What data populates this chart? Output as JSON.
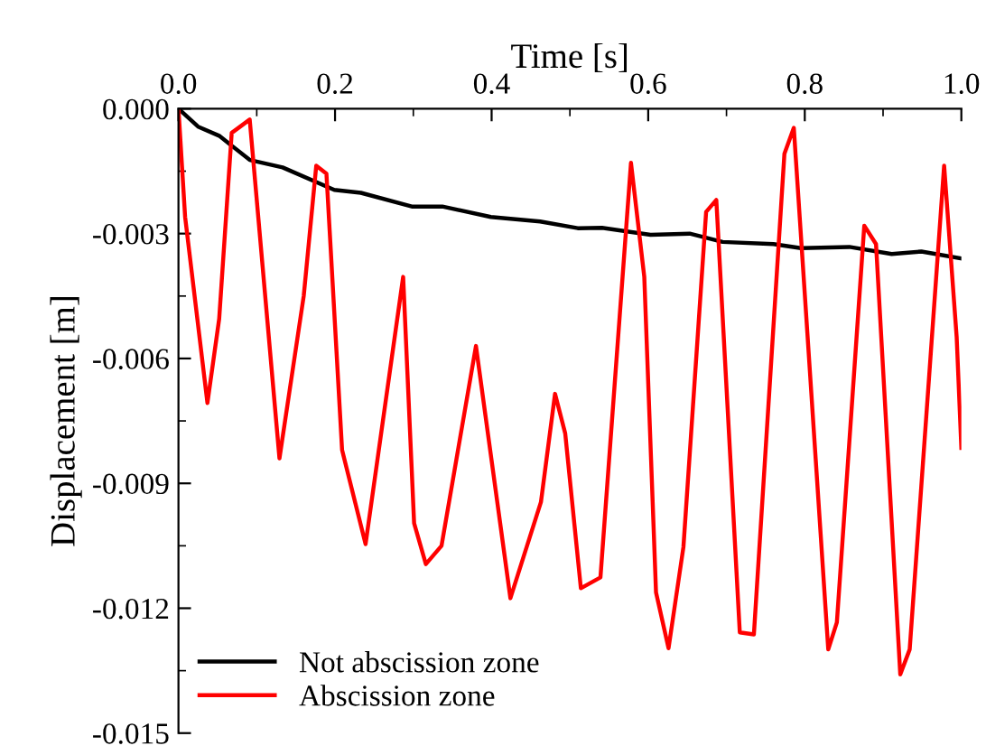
{
  "chart_data": {
    "type": "line",
    "xlabel": "Time [s]",
    "ylabel": "Displacement [m]",
    "xlim": [
      0,
      1.0
    ],
    "xticks": [
      {
        "value": 0,
        "label": "0.0"
      },
      {
        "value": 0.2,
        "label": "0.2"
      },
      {
        "value": 0.4,
        "label": "0.4"
      },
      {
        "value": 0.6,
        "label": "0.6"
      },
      {
        "value": 0.8,
        "label": "0.8"
      },
      {
        "value": 1.0,
        "label": "1.0"
      }
    ],
    "ylim": [
      -0.015,
      0
    ],
    "yticks": [
      {
        "value": 0,
        "label": "0.000"
      },
      {
        "value": -0.003,
        "label": "-0.003"
      },
      {
        "value": -0.006,
        "label": "-0.006"
      },
      {
        "value": -0.009,
        "label": "-0.009"
      },
      {
        "value": -0.012,
        "label": "-0.012"
      },
      {
        "value": -0.015,
        "label": "-0.015"
      }
    ],
    "grid": false,
    "legend": "bottom left",
    "marker": "none",
    "line_style": "solid",
    "series": [
      {
        "name": "Not abscission zone",
        "color": "#000000",
        "x": [
          0,
          0.025,
          0.052,
          0.091,
          0.133,
          0.199,
          0.233,
          0.298,
          0.337,
          0.399,
          0.462,
          0.51,
          0.541,
          0.603,
          0.653,
          0.695,
          0.76,
          0.795,
          0.857,
          0.911,
          0.949,
          1.0
        ],
        "values": [
          0,
          -0.00043,
          -0.00065,
          -0.00123,
          -0.00141,
          -0.00195,
          -0.00202,
          -0.00235,
          -0.00235,
          -0.0026,
          -0.00271,
          -0.00287,
          -0.00286,
          -0.00303,
          -0.003,
          -0.0032,
          -0.00325,
          -0.00335,
          -0.00332,
          -0.00349,
          -0.00343,
          -0.0036
        ]
      },
      {
        "name": "Abscission zone",
        "color": "#ff0000",
        "x": [
          0,
          0.0085,
          0.037,
          0.052,
          0.068,
          0.091,
          0.129,
          0.16,
          0.176,
          0.189,
          0.209,
          0.239,
          0.287,
          0.301,
          0.316,
          0.336,
          0.38,
          0.424,
          0.463,
          0.481,
          0.494,
          0.514,
          0.539,
          0.578,
          0.595,
          0.61,
          0.626,
          0.645,
          0.674,
          0.687,
          0.717,
          0.735,
          0.774,
          0.786,
          0.83,
          0.841,
          0.876,
          0.891,
          0.922,
          0.934,
          0.978,
          0.994,
          1.0
        ],
        "values": [
          0,
          -0.0026,
          -0.00707,
          -0.00505,
          -0.00058,
          -0.00026,
          -0.0084,
          -0.0045,
          -0.00137,
          -0.00156,
          -0.0082,
          -0.01046,
          -0.00404,
          -0.00996,
          -0.01094,
          -0.0105,
          -0.0057,
          -0.01176,
          -0.00945,
          -0.00685,
          -0.0078,
          -0.01152,
          -0.01126,
          -0.0013,
          -0.00404,
          -0.01162,
          -0.01296,
          -0.01053,
          -0.00248,
          -0.00219,
          -0.01258,
          -0.01263,
          -0.00108,
          -0.00046,
          -0.01299,
          -0.01234,
          -0.00281,
          -0.00325,
          -0.01359,
          -0.01299,
          -0.00137,
          -0.00548,
          -0.00815
        ]
      }
    ]
  }
}
